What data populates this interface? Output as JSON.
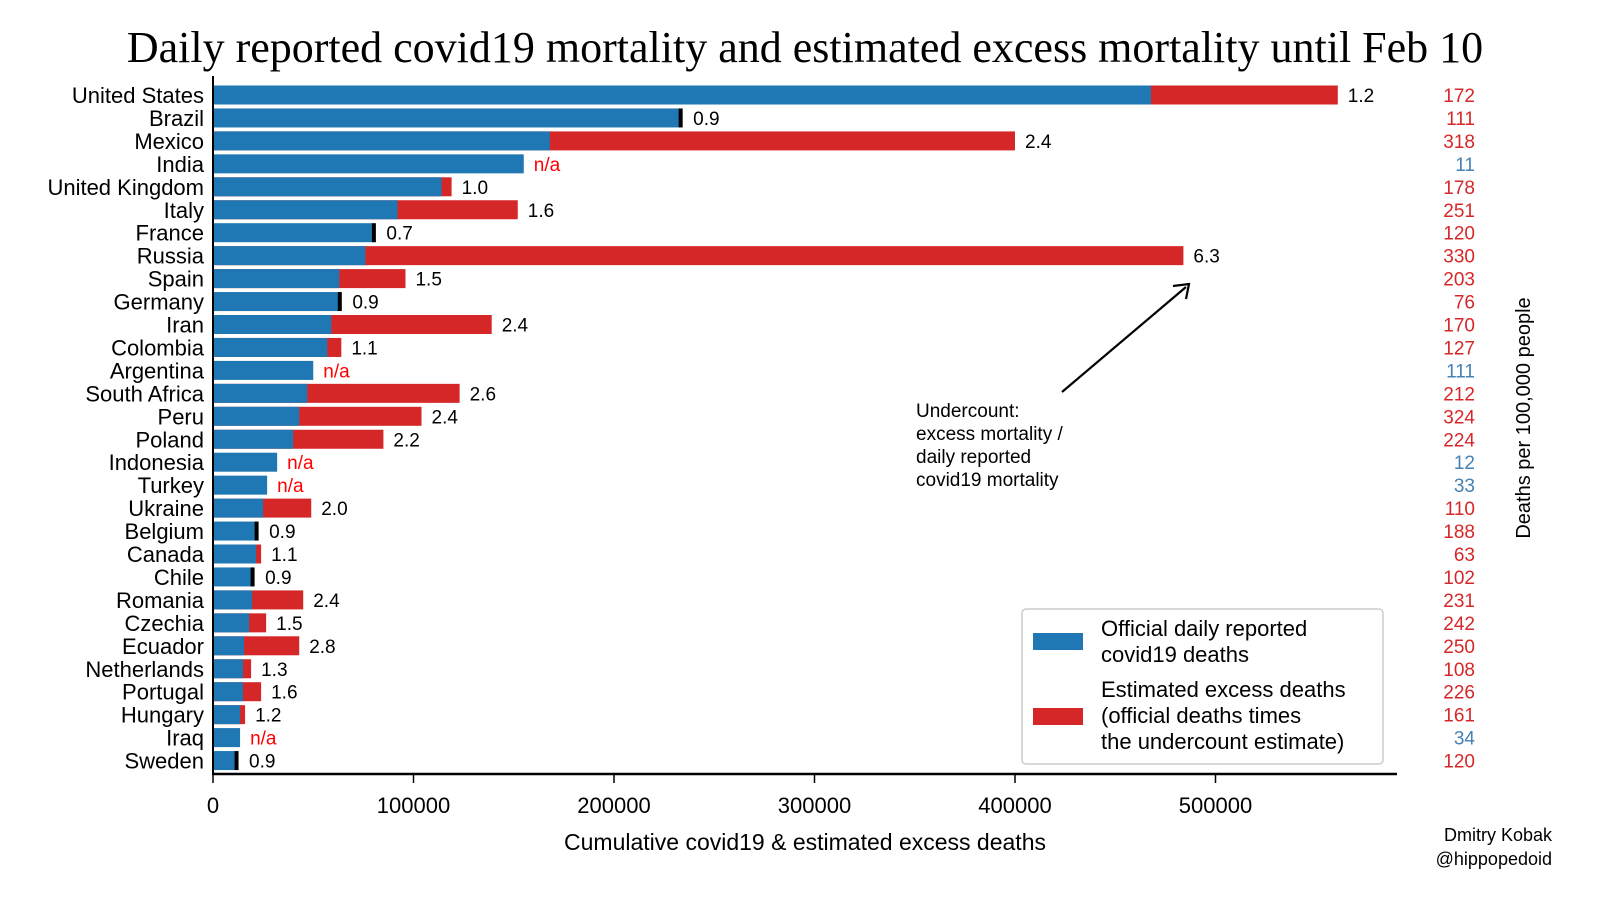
{
  "chart_data": {
    "type": "bar",
    "orientation": "horizontal",
    "stacked": true,
    "title": "Daily reported covid19 mortality and estimated excess mortality until Feb 10",
    "xlabel": "Cumulative covid19 & estimated excess deaths",
    "ylabel": "",
    "right_axis_label": "Deaths per 100,000 people",
    "xlim": [
      0,
      590000
    ],
    "xticks": [
      0,
      100000,
      200000,
      300000,
      400000,
      500000
    ],
    "xtick_labels": [
      "0",
      "100000",
      "200000",
      "300000",
      "400000",
      "500000"
    ],
    "grid": false,
    "legend_position": "bottom-right",
    "colors": {
      "official": "#1f77b4",
      "excess": "#d62728",
      "na_label": "#ff0000",
      "rate_excess": "#d62728",
      "rate_official": "#4682b4",
      "marker": "#000000"
    },
    "legend": [
      {
        "key": "official",
        "lines": [
          "Official daily reported",
          "covid19 deaths"
        ]
      },
      {
        "key": "excess",
        "lines": [
          "Estimated excess deaths",
          "(official deaths times",
          "the undercount estimate)"
        ]
      }
    ],
    "annotation": {
      "lines": [
        "Undercount:",
        "excess mortality /",
        "daily reported",
        "covid19 mortality"
      ],
      "points_to": "Russia"
    },
    "credit": [
      "Dmitry Kobak",
      "@hippopedoid"
    ],
    "categories": [
      "United States",
      "Brazil",
      "Mexico",
      "India",
      "United Kingdom",
      "Italy",
      "France",
      "Russia",
      "Spain",
      "Germany",
      "Iran",
      "Colombia",
      "Argentina",
      "South Africa",
      "Peru",
      "Poland",
      "Indonesia",
      "Turkey",
      "Ukraine",
      "Belgium",
      "Canada",
      "Chile",
      "Romania",
      "Czechia",
      "Ecuador",
      "Netherlands",
      "Portugal",
      "Hungary",
      "Iraq",
      "Sweden"
    ],
    "series": [
      {
        "name": "Official daily reported covid19 deaths",
        "values": [
          467800,
          233000,
          168000,
          155000,
          114000,
          92000,
          80000,
          76000,
          63000,
          63000,
          59000,
          57000,
          50000,
          47000,
          43000,
          40000,
          32000,
          27000,
          25000,
          21500,
          21500,
          19500,
          19500,
          18000,
          15500,
          15000,
          15000,
          13500,
          13500,
          11500
        ]
      },
      {
        "name": "Estimated excess deaths",
        "values": [
          561000,
          null,
          400000,
          null,
          119000,
          152000,
          null,
          484000,
          96000,
          null,
          139000,
          64000,
          null,
          123000,
          104000,
          85000,
          null,
          null,
          49000,
          null,
          24000,
          null,
          45000,
          26500,
          43000,
          19000,
          24000,
          16000,
          null,
          null
        ]
      }
    ],
    "undercount_labels": [
      "1.2",
      "0.9",
      "2.4",
      "n/a",
      "1.0",
      "1.6",
      "0.7",
      "6.3",
      "1.5",
      "0.9",
      "2.4",
      "1.1",
      "n/a",
      "2.6",
      "2.4",
      "2.2",
      "n/a",
      "n/a",
      "2.0",
      "0.9",
      "1.1",
      "0.9",
      "2.4",
      "1.5",
      "2.8",
      "1.3",
      "1.6",
      "1.2",
      "n/a",
      "0.9"
    ],
    "deaths_per_100k": [
      "172",
      "111",
      "318",
      "11",
      "178",
      "251",
      "120",
      "330",
      "203",
      "76",
      "170",
      "127",
      "111",
      "212",
      "324",
      "224",
      "12",
      "33",
      "110",
      "188",
      "63",
      "102",
      "231",
      "242",
      "250",
      "108",
      "226",
      "161",
      "34",
      "120"
    ],
    "deaths_per_100k_source": [
      "excess",
      "excess",
      "excess",
      "official",
      "excess",
      "excess",
      "excess",
      "excess",
      "excess",
      "excess",
      "excess",
      "excess",
      "official",
      "excess",
      "excess",
      "excess",
      "official",
      "official",
      "excess",
      "excess",
      "excess",
      "excess",
      "excess",
      "excess",
      "excess",
      "excess",
      "excess",
      "excess",
      "official",
      "excess"
    ]
  }
}
